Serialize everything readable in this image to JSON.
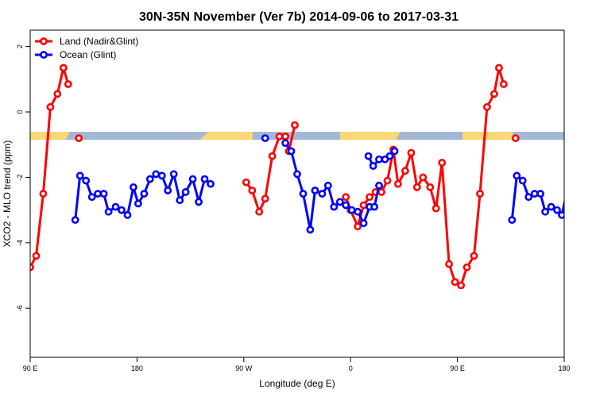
{
  "chart_data": {
    "type": "line",
    "title": "30N-35N November (Ver 7b)   2014-09-06 to 2017-03-31",
    "xlabel": "Longitude (deg E)",
    "ylabel": "XCO2 - MLO trend (ppm)",
    "xlim": [
      90,
      540
    ],
    "ylim": [
      -7.5,
      2.5
    ],
    "x_ticks": [
      {
        "value": 90,
        "label": "90 E"
      },
      {
        "value": 180,
        "label": "180"
      },
      {
        "value": 270,
        "label": "90 W"
      },
      {
        "value": 360,
        "label": "0"
      },
      {
        "value": 450,
        "label": "90 E"
      },
      {
        "value": 540,
        "label": "180"
      }
    ],
    "y_ticks": [
      {
        "value": 2,
        "label": "2"
      },
      {
        "value": 0,
        "label": "0"
      },
      {
        "value": -2,
        "label": "-2"
      },
      {
        "value": -4,
        "label": "-4"
      },
      {
        "value": -6,
        "label": "-6"
      }
    ],
    "legend_position": "top-left",
    "series": [
      {
        "name": "Land (Nadir&Glint)",
        "color": "#ff0000",
        "points": [
          [
            [
              90,
              -4.75
            ],
            [
              95,
              -4.4
            ],
            [
              101,
              -2.5
            ],
            [
              107,
              0.15
            ],
            [
              113,
              0.55
            ],
            [
              118,
              1.35
            ],
            [
              122,
              0.85
            ]
          ],
          [
            [
              131,
              -0.8
            ]
          ],
          [
            [
              272,
              -2.15
            ],
            [
              277,
              -2.4
            ],
            [
              283,
              -3.05
            ],
            [
              288,
              -2.65
            ],
            [
              294,
              -1.35
            ],
            [
              300,
              -0.75
            ],
            [
              305,
              -0.75
            ],
            [
              308,
              -1.2
            ],
            [
              313,
              -0.4
            ]
          ],
          [
            [
              356,
              -2.6
            ],
            [
              360,
              -3.0
            ],
            [
              366,
              -3.5
            ],
            [
              371,
              -2.85
            ],
            [
              376,
              -2.6
            ],
            [
              381,
              -2.45
            ],
            [
              386,
              -2.45
            ],
            [
              391,
              -2.1
            ],
            [
              396,
              -1.15
            ],
            [
              400,
              -2.2
            ],
            [
              406,
              -1.8
            ],
            [
              411,
              -1.25
            ],
            [
              416,
              -2.3
            ],
            [
              421,
              -2.0
            ],
            [
              427,
              -2.3
            ],
            [
              432,
              -2.95
            ],
            [
              437,
              -1.55
            ],
            [
              443,
              -4.65
            ],
            [
              448,
              -5.2
            ],
            [
              453,
              -5.3
            ],
            [
              458,
              -4.75
            ],
            [
              464,
              -4.4
            ],
            [
              469,
              -2.5
            ],
            [
              475,
              0.15
            ],
            [
              481,
              0.55
            ],
            [
              485,
              1.35
            ],
            [
              489,
              0.85
            ]
          ],
          [
            [
              499,
              -0.8
            ]
          ]
        ]
      },
      {
        "name": "Ocean (Glint)",
        "color": "#0000ff",
        "points": [
          [
            [
              128,
              -3.3
            ],
            [
              132,
              -1.95
            ],
            [
              137,
              -2.1
            ],
            [
              142,
              -2.6
            ],
            [
              147,
              -2.5
            ],
            [
              152,
              -2.5
            ],
            [
              156,
              -3.05
            ],
            [
              162,
              -2.9
            ],
            [
              167,
              -3.0
            ],
            [
              172,
              -3.15
            ],
            [
              177,
              -2.3
            ],
            [
              181,
              -2.8
            ],
            [
              186,
              -2.5
            ],
            [
              191,
              -2.05
            ],
            [
              196,
              -1.9
            ],
            [
              201,
              -1.95
            ],
            [
              206,
              -2.4
            ],
            [
              211,
              -1.9
            ],
            [
              216,
              -2.7
            ],
            [
              221,
              -2.45
            ],
            [
              227,
              -2.05
            ],
            [
              232,
              -2.75
            ],
            [
              237,
              -2.05
            ],
            [
              242,
              -2.2
            ]
          ],
          [
            [
              288,
              -0.8
            ]
          ],
          [
            [
              305,
              -0.95
            ],
            [
              310,
              -1.2
            ],
            [
              315,
              -1.9
            ],
            [
              320,
              -2.5
            ],
            [
              326,
              -3.6
            ],
            [
              330,
              -2.4
            ],
            [
              336,
              -2.5
            ],
            [
              341,
              -2.25
            ],
            [
              346,
              -2.9
            ],
            [
              351,
              -2.75
            ],
            [
              356,
              -2.85
            ],
            [
              361,
              -3.0
            ],
            [
              366,
              -3.05
            ],
            [
              371,
              -3.4
            ],
            [
              376,
              -2.9
            ],
            [
              380,
              -2.9
            ],
            [
              384,
              -2.25
            ]
          ],
          [
            [
              375,
              -1.35
            ],
            [
              379,
              -1.65
            ],
            [
              384,
              -1.45
            ],
            [
              389,
              -1.45
            ],
            [
              393,
              -1.35
            ],
            [
              397,
              -1.2
            ]
          ],
          [
            [
              496,
              -3.3
            ],
            [
              500,
              -1.95
            ],
            [
              505,
              -2.1
            ],
            [
              510,
              -2.6
            ],
            [
              515,
              -2.5
            ],
            [
              520,
              -2.5
            ],
            [
              524,
              -3.05
            ],
            [
              529,
              -2.9
            ],
            [
              534,
              -3.0
            ],
            [
              538,
              -3.15
            ],
            [
              543,
              -2.3
            ]
          ]
        ]
      }
    ]
  }
}
